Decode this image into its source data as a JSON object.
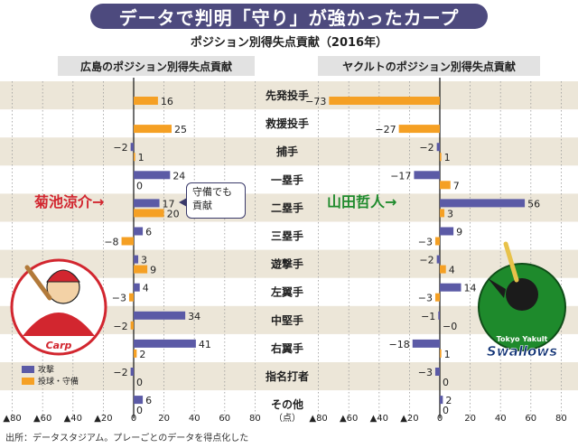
{
  "header": {
    "title": "データで判明「守り」が強かったカープ",
    "subtitle": "ポジション別得失点貢献（2016年）"
  },
  "footer": {
    "source": "出所：データスタジアム。プレーごとのデータを得点化した"
  },
  "annotations": {
    "left_player": "菊池涼介→",
    "right_player": "山田哲人→",
    "note": "守備でも貢献"
  },
  "legend": {
    "attack": "攻撃",
    "defense": "投球・守備"
  },
  "colors": {
    "attack": "#5b5aa6",
    "defense": "#f5a024",
    "row_band": "#ece6d8",
    "header_band": "#e2e2e2",
    "carp_red": "#d2262f",
    "swallows_green": "#1e8a2c"
  },
  "logos": {
    "left": "Carp",
    "right_top": "Tokyo Yakult",
    "right_main": "Swallows"
  },
  "chart_data": [
    {
      "type": "bar",
      "title": "広島のポジション別得失点貢献",
      "categories": [
        "先発投手",
        "救援投手",
        "捕手",
        "一塁手",
        "二塁手",
        "三塁手",
        "遊撃手",
        "左翼手",
        "中堅手",
        "右翼手",
        "指名打者",
        "その他"
      ],
      "series": [
        {
          "name": "攻撃",
          "values": [
            null,
            null,
            -2,
            24,
            17,
            6,
            3,
            4,
            34,
            41,
            -2,
            6
          ]
        },
        {
          "name": "投球・守備",
          "values": [
            16,
            25,
            1,
            0,
            20,
            -8,
            9,
            -3,
            -2,
            2,
            0,
            0
          ]
        }
      ],
      "xlim": [
        -80,
        80
      ],
      "xticks": [
        -80,
        -60,
        -40,
        -20,
        0,
        20,
        40,
        60,
        80
      ],
      "xtick_labels": [
        "▲80",
        "▲60",
        "▲40",
        "▲20",
        "0",
        "20",
        "40",
        "60",
        "80"
      ],
      "unit": "（点）"
    },
    {
      "type": "bar",
      "title": "ヤクルトのポジション別得失点貢献",
      "categories": [
        "先発投手",
        "救援投手",
        "捕手",
        "一塁手",
        "二塁手",
        "三塁手",
        "遊撃手",
        "左翼手",
        "中堅手",
        "右翼手",
        "指名打者",
        "その他"
      ],
      "series": [
        {
          "name": "攻撃",
          "values": [
            null,
            null,
            -2,
            -17,
            56,
            9,
            -2,
            14,
            -1,
            -18,
            -3,
            2
          ]
        },
        {
          "name": "投球・守備",
          "values": [
            -73,
            -27,
            1,
            7,
            3,
            -3,
            4,
            -3,
            0,
            1,
            0,
            0
          ]
        }
      ],
      "xlim": [
        -80,
        80
      ],
      "xticks": [
        -80,
        -60,
        -40,
        -20,
        0,
        20,
        40,
        60,
        80
      ],
      "xtick_labels": [
        "▲80",
        "▲60",
        "▲40",
        "▲20",
        "0",
        "20",
        "40",
        "60",
        "80"
      ]
    }
  ]
}
